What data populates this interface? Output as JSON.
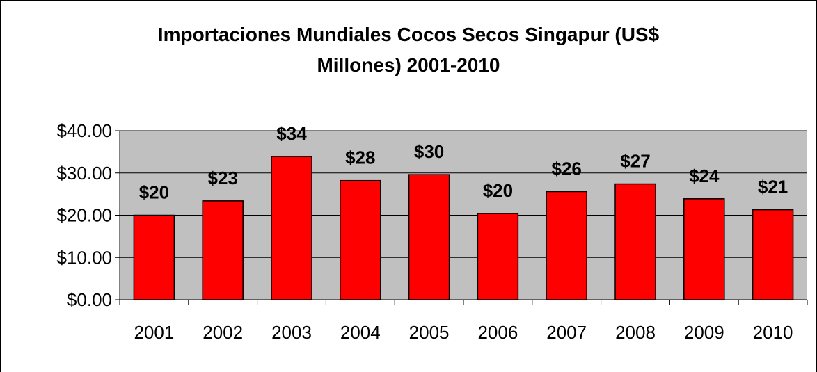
{
  "chart_data": {
    "type": "bar",
    "title_lines": [
      "Importaciones Mundiales Cocos Secos Singapur (US$",
      "Millones) 2001-2010"
    ],
    "categories": [
      "2001",
      "2002",
      "2003",
      "2004",
      "2005",
      "2006",
      "2007",
      "2008",
      "2009",
      "2010"
    ],
    "values": [
      20,
      23.4,
      33.9,
      28.2,
      29.6,
      20.4,
      25.6,
      27.4,
      23.9,
      21.3
    ],
    "data_labels": [
      "$20",
      "$23",
      "$34",
      "$28",
      "$30",
      "$20",
      "$26",
      "$27",
      "$24",
      "$21"
    ],
    "y_ticks": [
      "$0.00",
      "$10.00",
      "$20.00",
      "$30.00",
      "$40.00"
    ],
    "ylim": [
      0,
      40
    ],
    "xlabel": "",
    "ylabel": "",
    "grid": true,
    "legend": "none",
    "colors": {
      "bar": "#ff0000",
      "plot_background": "#c0c0c0",
      "gridline": "#000000"
    }
  }
}
